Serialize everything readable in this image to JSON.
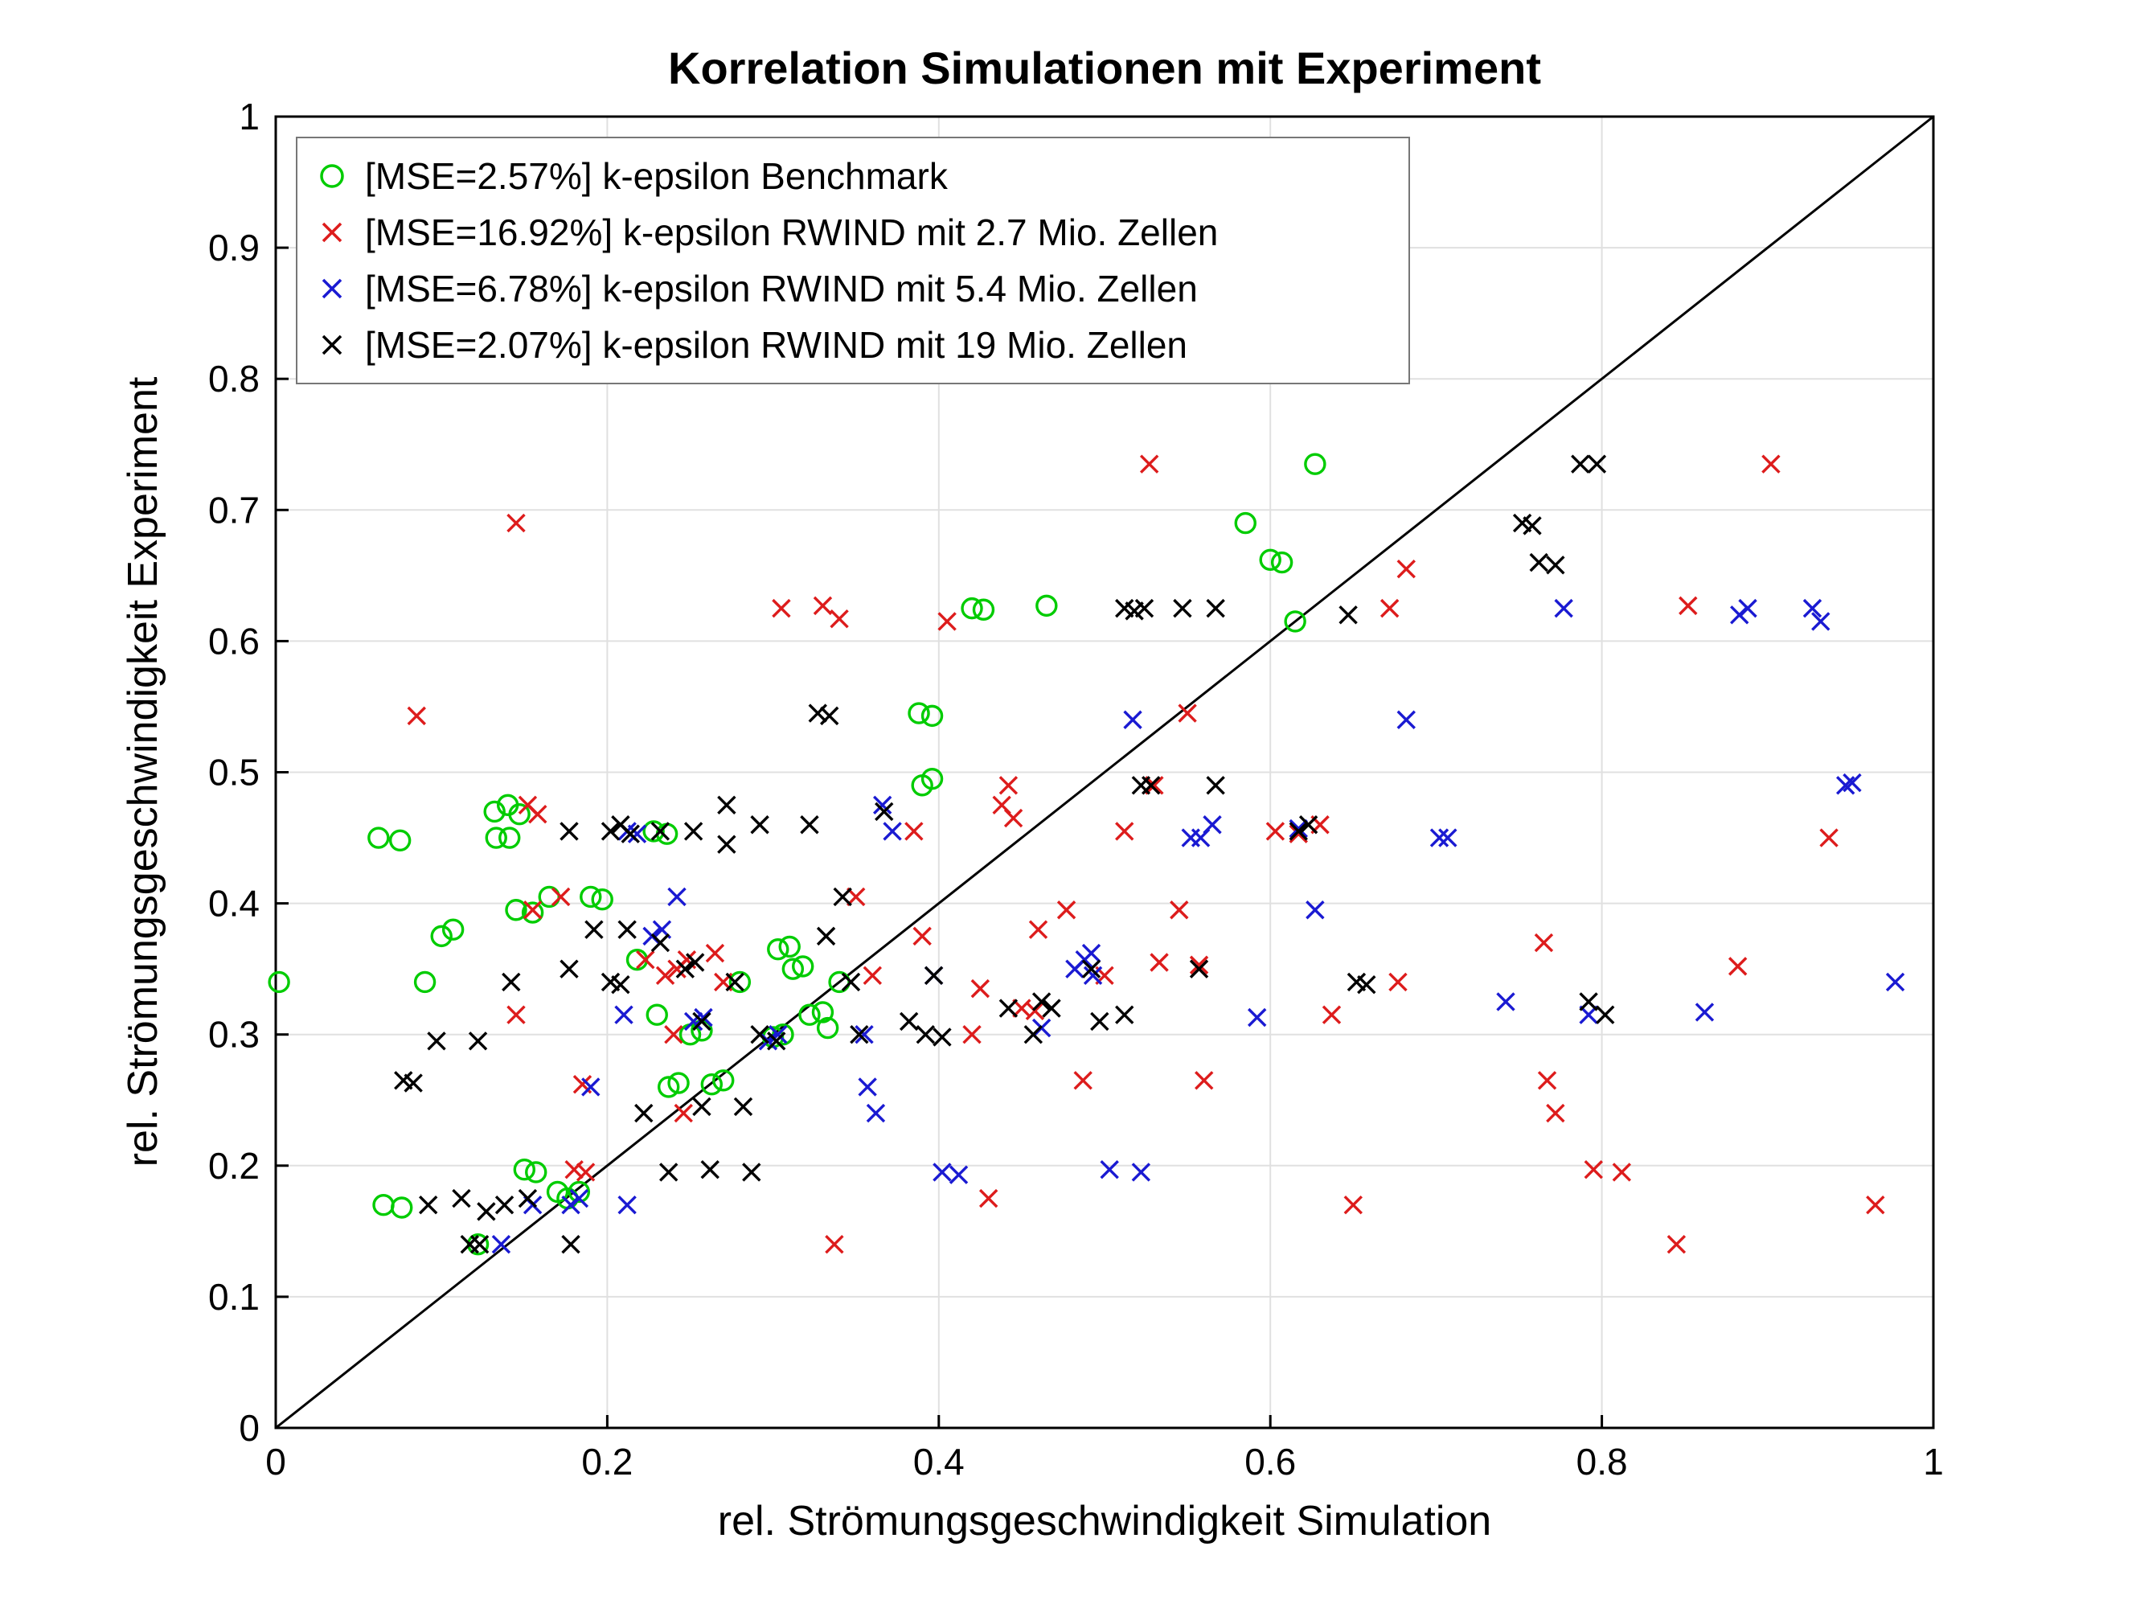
{
  "chart_data": {
    "type": "scatter",
    "title": "Korrelation Simulationen mit Experiment",
    "xlabel": "rel. Strömungsgeschwindigkeit Simulation",
    "ylabel": "rel. Strömungsgeschwindigkeit Experiment",
    "xlim": [
      0,
      1
    ],
    "ylim": [
      0,
      1
    ],
    "xticks": [
      0,
      0.2,
      0.4,
      0.6,
      0.8,
      1
    ],
    "yticks": [
      0,
      0.1,
      0.2,
      0.3,
      0.4,
      0.5,
      0.6,
      0.7,
      0.8,
      0.9,
      1
    ],
    "grid": true,
    "grid_color": "#e0e0e0",
    "axis_color": "#000000",
    "legend_position": "top-left",
    "reference_line": {
      "x": [
        0,
        1
      ],
      "y": [
        0,
        1
      ],
      "color": "#000000"
    },
    "series": [
      {
        "name": "[MSE=2.57%] k-epsilon Benchmark",
        "mse_percent": 2.57,
        "marker": "circle",
        "color": "#00cc00",
        "points": [
          [
            0.002,
            0.34
          ],
          [
            0.062,
            0.45
          ],
          [
            0.075,
            0.448
          ],
          [
            0.065,
            0.17
          ],
          [
            0.076,
            0.168
          ],
          [
            0.09,
            0.34
          ],
          [
            0.1,
            0.375
          ],
          [
            0.107,
            0.38
          ],
          [
            0.122,
            0.14
          ],
          [
            0.132,
            0.47
          ],
          [
            0.14,
            0.475
          ],
          [
            0.147,
            0.468
          ],
          [
            0.133,
            0.45
          ],
          [
            0.141,
            0.45
          ],
          [
            0.145,
            0.395
          ],
          [
            0.155,
            0.393
          ],
          [
            0.15,
            0.197
          ],
          [
            0.157,
            0.195
          ],
          [
            0.165,
            0.405
          ],
          [
            0.17,
            0.18
          ],
          [
            0.176,
            0.175
          ],
          [
            0.183,
            0.18
          ],
          [
            0.19,
            0.405
          ],
          [
            0.197,
            0.403
          ],
          [
            0.218,
            0.357
          ],
          [
            0.228,
            0.455
          ],
          [
            0.236,
            0.453
          ],
          [
            0.23,
            0.315
          ],
          [
            0.237,
            0.26
          ],
          [
            0.243,
            0.263
          ],
          [
            0.25,
            0.3
          ],
          [
            0.257,
            0.303
          ],
          [
            0.263,
            0.262
          ],
          [
            0.27,
            0.265
          ],
          [
            0.28,
            0.34
          ],
          [
            0.3,
            0.298
          ],
          [
            0.306,
            0.3
          ],
          [
            0.303,
            0.365
          ],
          [
            0.31,
            0.367
          ],
          [
            0.312,
            0.35
          ],
          [
            0.318,
            0.352
          ],
          [
            0.322,
            0.315
          ],
          [
            0.33,
            0.317
          ],
          [
            0.333,
            0.305
          ],
          [
            0.34,
            0.34
          ],
          [
            0.388,
            0.545
          ],
          [
            0.396,
            0.543
          ],
          [
            0.39,
            0.49
          ],
          [
            0.396,
            0.495
          ],
          [
            0.42,
            0.625
          ],
          [
            0.427,
            0.624
          ],
          [
            0.465,
            0.627
          ],
          [
            0.585,
            0.69
          ],
          [
            0.6,
            0.662
          ],
          [
            0.607,
            0.66
          ],
          [
            0.615,
            0.615
          ],
          [
            0.627,
            0.735
          ]
        ]
      },
      {
        "name": "[MSE=16.92%] k-epsilon RWIND mit 2.7 Mio. Zellen",
        "mse_percent": 16.92,
        "marker": "x",
        "color": "#dd1c1c",
        "points": [
          [
            0.085,
            0.543
          ],
          [
            0.145,
            0.69
          ],
          [
            0.145,
            0.315
          ],
          [
            0.152,
            0.475
          ],
          [
            0.158,
            0.468
          ],
          [
            0.155,
            0.395
          ],
          [
            0.172,
            0.405
          ],
          [
            0.18,
            0.197
          ],
          [
            0.187,
            0.195
          ],
          [
            0.185,
            0.262
          ],
          [
            0.223,
            0.357
          ],
          [
            0.235,
            0.345
          ],
          [
            0.242,
            0.35
          ],
          [
            0.248,
            0.357
          ],
          [
            0.24,
            0.3
          ],
          [
            0.246,
            0.24
          ],
          [
            0.265,
            0.362
          ],
          [
            0.27,
            0.34
          ],
          [
            0.305,
            0.625
          ],
          [
            0.33,
            0.627
          ],
          [
            0.34,
            0.617
          ],
          [
            0.337,
            0.14
          ],
          [
            0.35,
            0.405
          ],
          [
            0.36,
            0.345
          ],
          [
            0.385,
            0.455
          ],
          [
            0.39,
            0.375
          ],
          [
            0.405,
            0.615
          ],
          [
            0.42,
            0.3
          ],
          [
            0.425,
            0.335
          ],
          [
            0.43,
            0.175
          ],
          [
            0.442,
            0.49
          ],
          [
            0.438,
            0.475
          ],
          [
            0.445,
            0.465
          ],
          [
            0.45,
            0.32
          ],
          [
            0.458,
            0.318
          ],
          [
            0.46,
            0.38
          ],
          [
            0.477,
            0.395
          ],
          [
            0.487,
            0.265
          ],
          [
            0.5,
            0.345
          ],
          [
            0.512,
            0.455
          ],
          [
            0.527,
            0.735
          ],
          [
            0.53,
            0.49
          ],
          [
            0.533,
            0.355
          ],
          [
            0.545,
            0.395
          ],
          [
            0.55,
            0.545
          ],
          [
            0.557,
            0.353
          ],
          [
            0.56,
            0.265
          ],
          [
            0.603,
            0.455
          ],
          [
            0.617,
            0.453
          ],
          [
            0.63,
            0.46
          ],
          [
            0.637,
            0.315
          ],
          [
            0.65,
            0.17
          ],
          [
            0.672,
            0.625
          ],
          [
            0.677,
            0.34
          ],
          [
            0.682,
            0.655
          ],
          [
            0.765,
            0.37
          ],
          [
            0.767,
            0.265
          ],
          [
            0.772,
            0.24
          ],
          [
            0.795,
            0.197
          ],
          [
            0.812,
            0.195
          ],
          [
            0.845,
            0.14
          ],
          [
            0.852,
            0.627
          ],
          [
            0.882,
            0.352
          ],
          [
            0.902,
            0.735
          ],
          [
            0.937,
            0.45
          ],
          [
            0.965,
            0.17
          ]
        ]
      },
      {
        "name": "[MSE=6.78%] k-epsilon RWIND mit 5.4 Mio. Zellen",
        "mse_percent": 6.78,
        "marker": "x",
        "color": "#1a1ad2",
        "points": [
          [
            0.136,
            0.14
          ],
          [
            0.155,
            0.17
          ],
          [
            0.178,
            0.17
          ],
          [
            0.183,
            0.175
          ],
          [
            0.19,
            0.26
          ],
          [
            0.212,
            0.455
          ],
          [
            0.218,
            0.453
          ],
          [
            0.21,
            0.315
          ],
          [
            0.212,
            0.17
          ],
          [
            0.227,
            0.375
          ],
          [
            0.233,
            0.38
          ],
          [
            0.242,
            0.405
          ],
          [
            0.252,
            0.31
          ],
          [
            0.258,
            0.313
          ],
          [
            0.297,
            0.295
          ],
          [
            0.303,
            0.3
          ],
          [
            0.355,
            0.3
          ],
          [
            0.357,
            0.26
          ],
          [
            0.362,
            0.24
          ],
          [
            0.366,
            0.475
          ],
          [
            0.372,
            0.455
          ],
          [
            0.397,
            0.345
          ],
          [
            0.402,
            0.195
          ],
          [
            0.412,
            0.193
          ],
          [
            0.462,
            0.305
          ],
          [
            0.482,
            0.35
          ],
          [
            0.488,
            0.357
          ],
          [
            0.492,
            0.362
          ],
          [
            0.493,
            0.345
          ],
          [
            0.503,
            0.197
          ],
          [
            0.517,
            0.54
          ],
          [
            0.522,
            0.195
          ],
          [
            0.552,
            0.45
          ],
          [
            0.558,
            0.45
          ],
          [
            0.565,
            0.46
          ],
          [
            0.592,
            0.313
          ],
          [
            0.617,
            0.457
          ],
          [
            0.627,
            0.395
          ],
          [
            0.682,
            0.54
          ],
          [
            0.702,
            0.45
          ],
          [
            0.707,
            0.45
          ],
          [
            0.742,
            0.325
          ],
          [
            0.777,
            0.625
          ],
          [
            0.792,
            0.315
          ],
          [
            0.862,
            0.317
          ],
          [
            0.883,
            0.62
          ],
          [
            0.888,
            0.625
          ],
          [
            0.927,
            0.625
          ],
          [
            0.932,
            0.615
          ],
          [
            0.947,
            0.49
          ],
          [
            0.951,
            0.492
          ],
          [
            0.977,
            0.34
          ]
        ]
      },
      {
        "name": "[MSE=2.07%] k-epsilon RWIND mit 19 Mio. Zellen",
        "mse_percent": 2.07,
        "marker": "x",
        "color": "#000000",
        "points": [
          [
            0.077,
            0.265
          ],
          [
            0.083,
            0.263
          ],
          [
            0.092,
            0.17
          ],
          [
            0.097,
            0.295
          ],
          [
            0.112,
            0.175
          ],
          [
            0.117,
            0.14
          ],
          [
            0.123,
            0.14
          ],
          [
            0.122,
            0.295
          ],
          [
            0.127,
            0.165
          ],
          [
            0.138,
            0.17
          ],
          [
            0.142,
            0.34
          ],
          [
            0.152,
            0.175
          ],
          [
            0.177,
            0.455
          ],
          [
            0.177,
            0.35
          ],
          [
            0.178,
            0.14
          ],
          [
            0.192,
            0.38
          ],
          [
            0.202,
            0.455
          ],
          [
            0.208,
            0.46
          ],
          [
            0.214,
            0.453
          ],
          [
            0.202,
            0.34
          ],
          [
            0.208,
            0.338
          ],
          [
            0.212,
            0.38
          ],
          [
            0.222,
            0.24
          ],
          [
            0.232,
            0.455
          ],
          [
            0.232,
            0.37
          ],
          [
            0.237,
            0.195
          ],
          [
            0.247,
            0.35
          ],
          [
            0.253,
            0.355
          ],
          [
            0.252,
            0.455
          ],
          [
            0.257,
            0.31
          ],
          [
            0.257,
            0.245
          ],
          [
            0.262,
            0.197
          ],
          [
            0.272,
            0.475
          ],
          [
            0.272,
            0.445
          ],
          [
            0.277,
            0.34
          ],
          [
            0.282,
            0.245
          ],
          [
            0.287,
            0.195
          ],
          [
            0.292,
            0.46
          ],
          [
            0.292,
            0.3
          ],
          [
            0.302,
            0.295
          ],
          [
            0.322,
            0.46
          ],
          [
            0.327,
            0.545
          ],
          [
            0.334,
            0.543
          ],
          [
            0.332,
            0.375
          ],
          [
            0.342,
            0.405
          ],
          [
            0.347,
            0.34
          ],
          [
            0.352,
            0.3
          ],
          [
            0.367,
            0.47
          ],
          [
            0.382,
            0.31
          ],
          [
            0.392,
            0.3
          ],
          [
            0.402,
            0.298
          ],
          [
            0.397,
            0.345
          ],
          [
            0.442,
            0.32
          ],
          [
            0.457,
            0.3
          ],
          [
            0.462,
            0.325
          ],
          [
            0.468,
            0.32
          ],
          [
            0.492,
            0.35
          ],
          [
            0.497,
            0.31
          ],
          [
            0.512,
            0.625
          ],
          [
            0.518,
            0.623
          ],
          [
            0.524,
            0.625
          ],
          [
            0.512,
            0.315
          ],
          [
            0.522,
            0.49
          ],
          [
            0.528,
            0.49
          ],
          [
            0.547,
            0.625
          ],
          [
            0.557,
            0.35
          ],
          [
            0.567,
            0.625
          ],
          [
            0.567,
            0.49
          ],
          [
            0.617,
            0.455
          ],
          [
            0.623,
            0.46
          ],
          [
            0.647,
            0.62
          ],
          [
            0.652,
            0.34
          ],
          [
            0.658,
            0.338
          ],
          [
            0.752,
            0.69
          ],
          [
            0.758,
            0.688
          ],
          [
            0.762,
            0.66
          ],
          [
            0.772,
            0.658
          ],
          [
            0.787,
            0.735
          ],
          [
            0.797,
            0.735
          ],
          [
            0.792,
            0.325
          ],
          [
            0.802,
            0.315
          ]
        ]
      }
    ]
  }
}
